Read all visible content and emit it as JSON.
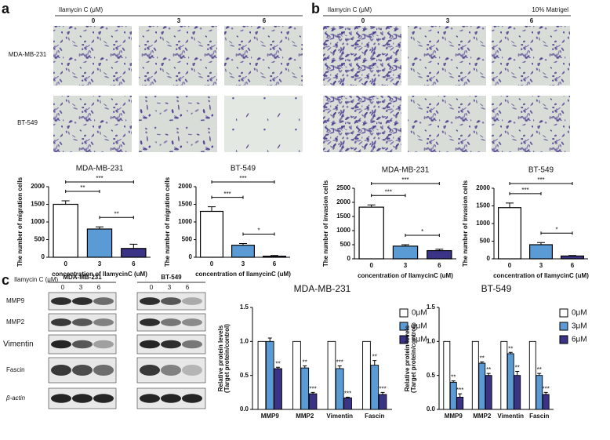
{
  "figure": {
    "a": {
      "label": "a",
      "treatment": "Ilamycin C (μM)",
      "doses": [
        "0",
        "3",
        "6"
      ],
      "cell_lines": [
        "MDA-MB-231",
        "BT-549"
      ]
    },
    "b": {
      "label": "b",
      "treatment": "Ilamycin C (μM)",
      "doses": [
        "0",
        "3",
        "6"
      ],
      "condition": "10% Matrigel"
    },
    "c": {
      "label": "c",
      "treatment": "Ilamycin C (μM)",
      "cell_lines": [
        "MDA-MB-231",
        "BT-549"
      ],
      "doses": [
        "0",
        "3",
        "6"
      ],
      "proteins": [
        "MMP9",
        "MMP2",
        "Vimentin",
        "Fascin",
        "β-actin"
      ]
    }
  },
  "chart_data": [
    {
      "type": "bar",
      "title": "MDA-MB-231",
      "ylabel": "The number of migration cells",
      "xlabel": "concentration of IlamycinC (uM)",
      "categories": [
        "0",
        "3",
        "6"
      ],
      "values": [
        1500,
        800,
        250
      ],
      "errors": [
        100,
        60,
        120
      ],
      "colors": [
        "#ffffff",
        "#5b9bd5",
        "#3b3486"
      ],
      "ylim": [
        0,
        2000
      ],
      "yticks": [
        0,
        500,
        1000,
        1500,
        2000
      ],
      "brackets": [
        {
          "from": 0,
          "to": 1,
          "label": "**"
        },
        {
          "from": 0,
          "to": 2,
          "label": "***"
        },
        {
          "from": 1,
          "to": 2,
          "label": "**"
        }
      ]
    },
    {
      "type": "bar",
      "title": "BT-549",
      "ylabel": "The number of migration cells",
      "xlabel": "concentration of IlamycinC (uM)",
      "categories": [
        "0",
        "3",
        "6"
      ],
      "values": [
        1300,
        340,
        30
      ],
      "errors": [
        130,
        50,
        20
      ],
      "colors": [
        "#ffffff",
        "#5b9bd5",
        "#3b3486"
      ],
      "ylim": [
        0,
        2000
      ],
      "yticks": [
        0,
        500,
        1000,
        1500,
        2000
      ],
      "brackets": [
        {
          "from": 0,
          "to": 1,
          "label": "***"
        },
        {
          "from": 0,
          "to": 2,
          "label": "***"
        },
        {
          "from": 1,
          "to": 2,
          "label": "*"
        }
      ]
    },
    {
      "type": "bar",
      "title": "MDA-MB-231",
      "ylabel": "The number of invasion cells",
      "xlabel": "concentration of IlamycinC (uM)",
      "categories": [
        "0",
        "3",
        "6"
      ],
      "values": [
        1830,
        450,
        290
      ],
      "errors": [
        80,
        50,
        50
      ],
      "colors": [
        "#ffffff",
        "#5b9bd5",
        "#3b3486"
      ],
      "ylim": [
        0,
        2500
      ],
      "yticks": [
        0,
        500,
        1000,
        1500,
        2000,
        2500
      ],
      "brackets": [
        {
          "from": 0,
          "to": 1,
          "label": "***"
        },
        {
          "from": 0,
          "to": 2,
          "label": "***"
        },
        {
          "from": 1,
          "to": 2,
          "label": "*"
        }
      ]
    },
    {
      "type": "bar",
      "title": "BT-549",
      "ylabel": "The number of invasion cells",
      "xlabel": "concentration of IlamycinC (uM)",
      "categories": [
        "0",
        "3",
        "6"
      ],
      "values": [
        1450,
        400,
        80
      ],
      "errors": [
        130,
        60,
        15
      ],
      "colors": [
        "#ffffff",
        "#5b9bd5",
        "#3b3486"
      ],
      "ylim": [
        0,
        2000
      ],
      "yticks": [
        0,
        500,
        1000,
        1500,
        2000
      ],
      "brackets": [
        {
          "from": 0,
          "to": 1,
          "label": "***"
        },
        {
          "from": 0,
          "to": 2,
          "label": "***"
        },
        {
          "from": 1,
          "to": 2,
          "label": "*"
        }
      ]
    },
    {
      "type": "bar",
      "title": "MDA-MB-231",
      "ylabel": [
        "Relative protein levels",
        "(Target protein/control)"
      ],
      "categories": [
        "MMP9",
        "MMP2",
        "Vimentin",
        "Fascin"
      ],
      "series": [
        {
          "name": "0μM",
          "color": "#ffffff",
          "values": [
            1,
            1,
            1,
            1
          ]
        },
        {
          "name": "3μM",
          "color": "#5b9bd5",
          "values": [
            1.0,
            0.61,
            0.6,
            0.65
          ],
          "errors": [
            0.05,
            0.03,
            0.04,
            0.07
          ],
          "stars": [
            null,
            "**",
            "***",
            "**"
          ]
        },
        {
          "name": "6μM",
          "color": "#3b3486",
          "values": [
            0.6,
            0.23,
            0.17,
            0.22
          ],
          "errors": [
            0.02,
            0.02,
            0.01,
            0.03
          ],
          "stars": [
            "**",
            "***",
            "***",
            "***"
          ]
        }
      ],
      "ylim": [
        0,
        1.5
      ],
      "yticks": [
        {
          "value": 0,
          "label": "0.0"
        },
        0.5,
        {
          "value": 1,
          "label": "1.0"
        },
        1.5
      ]
    },
    {
      "type": "bar",
      "title": "BT-549",
      "ylabel": [
        "Relative protein levels",
        "(Target protein/control)"
      ],
      "categories": [
        "MMP9",
        "MMP2",
        "Vimentin",
        "Fascin"
      ],
      "series": [
        {
          "name": "0μM",
          "color": "#ffffff",
          "values": [
            1,
            1,
            1,
            1
          ]
        },
        {
          "name": "3μM",
          "color": "#5b9bd5",
          "values": [
            0.4,
            0.68,
            0.82,
            0.5
          ],
          "errors": [
            0.02,
            0.02,
            0.02,
            0.03
          ],
          "stars": [
            "**",
            "**",
            "**",
            "**"
          ]
        },
        {
          "name": "6μM",
          "color": "#3b3486",
          "values": [
            0.18,
            0.5,
            0.5,
            0.22
          ],
          "errors": [
            0.05,
            0.03,
            0.06,
            0.03
          ],
          "stars": [
            "***",
            "**",
            "**",
            "***"
          ]
        }
      ],
      "ylim": [
        0,
        1.5
      ],
      "yticks": [
        {
          "value": 0,
          "label": "0.0"
        },
        0.5,
        {
          "value": 1,
          "label": "1.0"
        },
        1.5
      ]
    }
  ]
}
